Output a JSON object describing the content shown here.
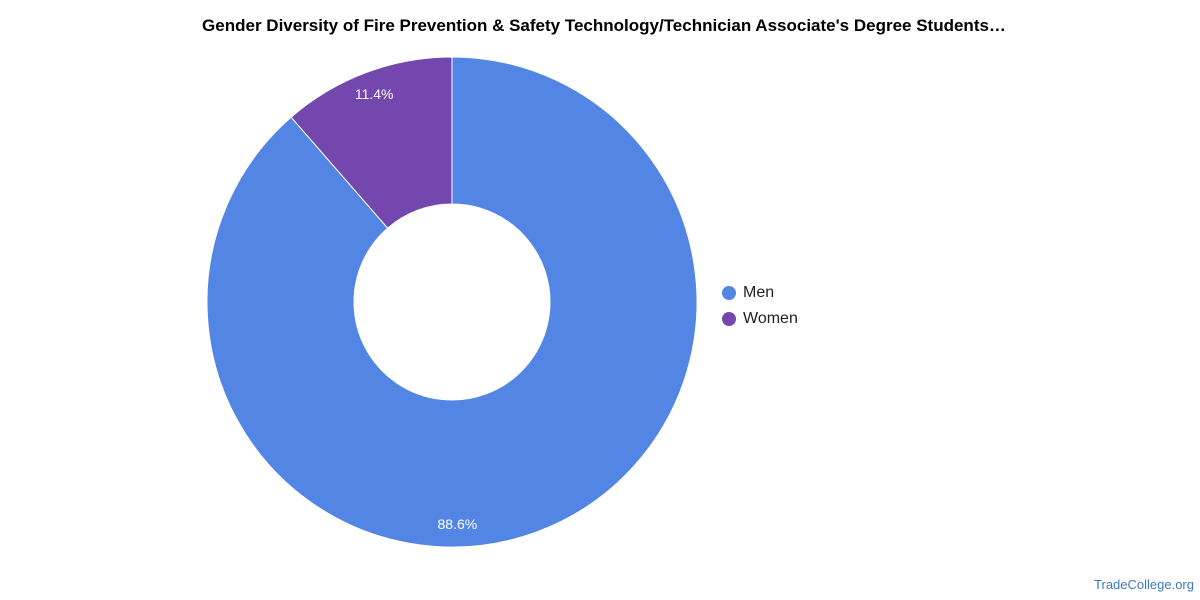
{
  "chart_data": {
    "type": "pie",
    "title": "Gender Diversity of Fire Prevention & Safety Technology/Technician Associate's Degree Students…",
    "categories": [
      "Men",
      "Women"
    ],
    "values": [
      88.6,
      11.4
    ],
    "value_labels": [
      "88.6%",
      "11.4%"
    ],
    "colors": [
      "#5386e4",
      "#7447ae"
    ],
    "donut": true,
    "legend_position": "right"
  },
  "footer": {
    "source": "TradeCollege.org"
  }
}
